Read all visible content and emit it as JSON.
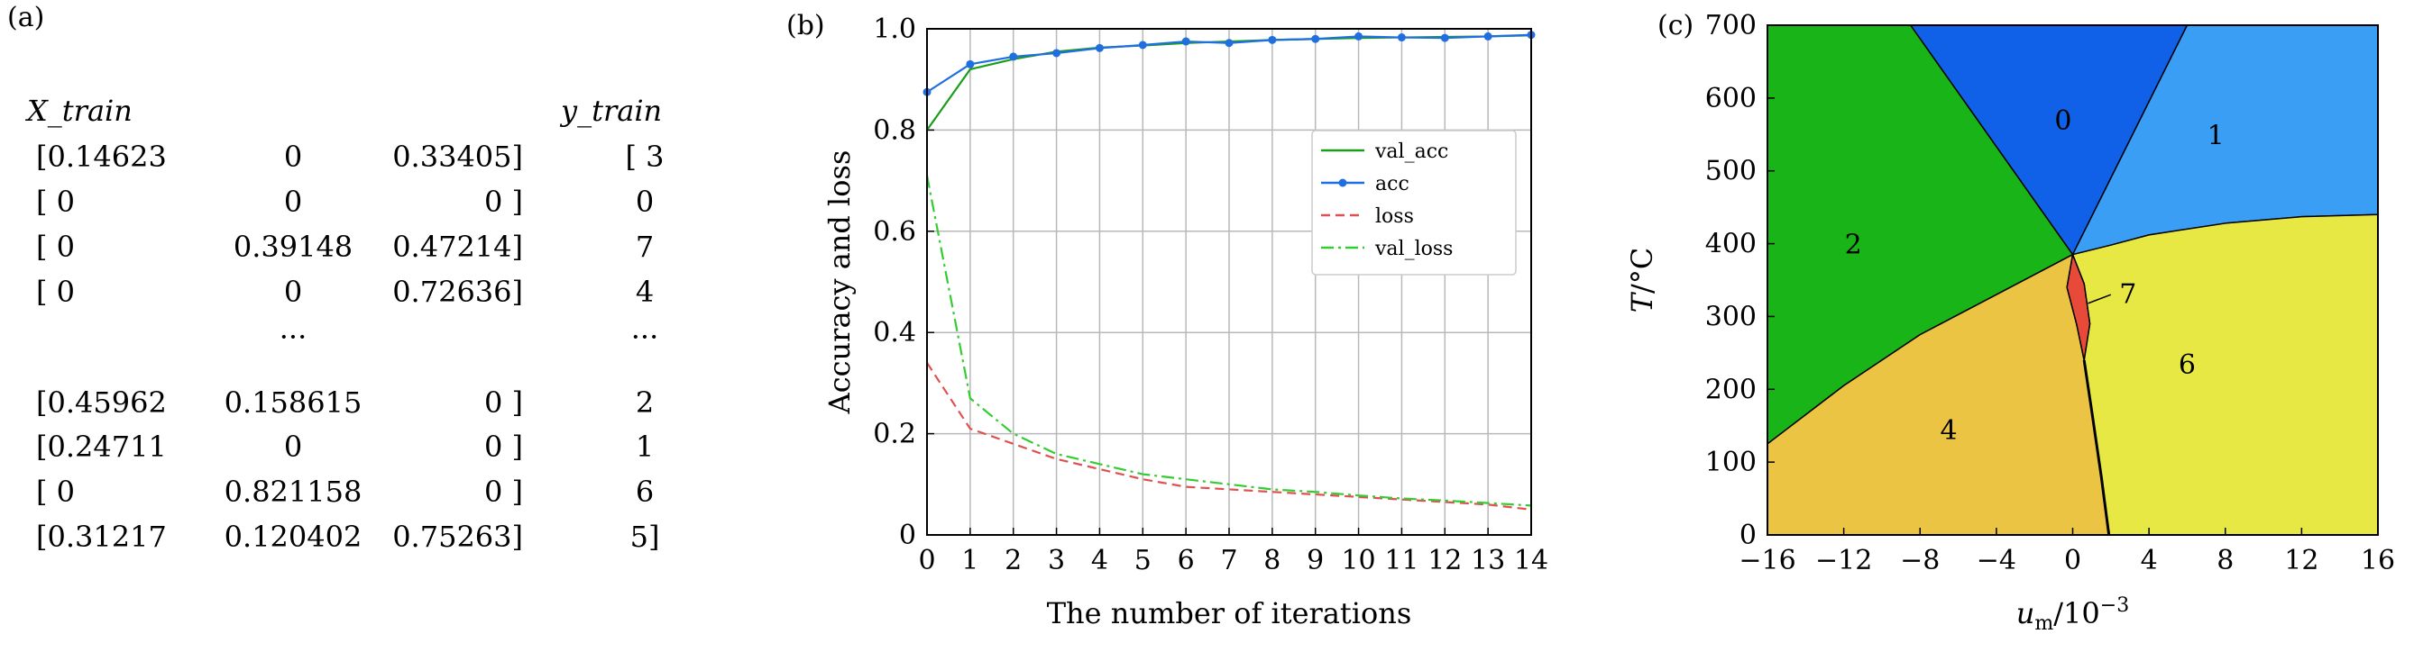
{
  "panel_a": {
    "label": "(a)",
    "x_header": "X_train",
    "y_header": "y_train",
    "rows": [
      {
        "c1": "[0.14623",
        "c2": "0",
        "c3": "0.33405]",
        "y": "[ 3"
      },
      {
        "c1": "[ 0",
        "c2": "0",
        "c3": "0 ]",
        "y": "0"
      },
      {
        "c1": "[ 0",
        "c2": "0.39148",
        "c3": "0.47214]",
        "y": "7"
      },
      {
        "c1": "[ 0",
        "c2": "0",
        "c3": "0.72636]",
        "y": "4"
      },
      {
        "c1": "",
        "c2": "···",
        "c3": "",
        "y": "···"
      },
      {
        "c1": "[0.45962",
        "c2": "0.158615",
        "c3": "0 ]",
        "y": "2"
      },
      {
        "c1": "[0.24711",
        "c2": "0",
        "c3": "0 ]",
        "y": "1"
      },
      {
        "c1": "[ 0",
        "c2": "0.821158",
        "c3": "0 ]",
        "y": "6"
      },
      {
        "c1": "[0.31217",
        "c2": "0.120402",
        "c3": "0.75263]",
        "y": "5]"
      }
    ]
  },
  "chart_data": [
    {
      "panel_label": "(b)",
      "type": "line",
      "xlabel": "The number of iterations",
      "ylabel": "Accuracy and loss",
      "xlim": [
        0,
        14
      ],
      "ylim": [
        0,
        1.0
      ],
      "xticks": [
        "0",
        "1",
        "2",
        "3",
        "4",
        "5",
        "6",
        "7",
        "8",
        "9",
        "10",
        "11",
        "12",
        "13",
        "14"
      ],
      "yticks": [
        "0",
        "0.2",
        "0.4",
        "0.6",
        "0.8",
        "1.0"
      ],
      "grid": true,
      "legend_position": "right, middle",
      "x": [
        0,
        1,
        2,
        3,
        4,
        5,
        6,
        7,
        8,
        9,
        10,
        11,
        12,
        13,
        14
      ],
      "series": [
        {
          "name": "val_acc",
          "color": "#1a9e1a",
          "style": "solid",
          "marker": false,
          "values": [
            0.8,
            0.92,
            0.94,
            0.955,
            0.963,
            0.967,
            0.972,
            0.975,
            0.978,
            0.98,
            0.982,
            0.983,
            0.984,
            0.985,
            0.987
          ]
        },
        {
          "name": "acc",
          "color": "#1f6fe0",
          "style": "solid",
          "marker": true,
          "values": [
            0.875,
            0.93,
            0.945,
            0.952,
            0.962,
            0.968,
            0.975,
            0.972,
            0.978,
            0.98,
            0.985,
            0.983,
            0.982,
            0.985,
            0.988
          ]
        },
        {
          "name": "loss",
          "color": "#e05050",
          "style": "dashed",
          "marker": false,
          "values": [
            0.34,
            0.21,
            0.18,
            0.15,
            0.13,
            0.11,
            0.095,
            0.09,
            0.085,
            0.08,
            0.075,
            0.07,
            0.065,
            0.06,
            0.05
          ]
        },
        {
          "name": "val_loss",
          "color": "#33cc33",
          "style": "dashdot",
          "marker": false,
          "values": [
            0.71,
            0.27,
            0.2,
            0.16,
            0.14,
            0.12,
            0.11,
            0.1,
            0.09,
            0.085,
            0.078,
            0.072,
            0.068,
            0.063,
            0.058
          ]
        }
      ]
    },
    {
      "panel_label": "(c)",
      "type": "area",
      "description_kind": "phase_regions",
      "xlabel": "u_m/10^-3",
      "ylabel": "T/°C",
      "xlabel_parts": {
        "var": "u",
        "sub": "m",
        "rest": "/10",
        "sup": "−3"
      },
      "ylabel_parts": {
        "var": "T",
        "rest": "/°C"
      },
      "xlim": [
        -16,
        16
      ],
      "ylim": [
        0,
        700
      ],
      "xticks": [
        "−16",
        "−12",
        "−8",
        "−4",
        "0",
        "4",
        "8",
        "12",
        "16"
      ],
      "yticks": [
        "0",
        "100",
        "200",
        "300",
        "400",
        "500",
        "600",
        "700"
      ],
      "regions": [
        {
          "label": "0",
          "color": "#1060e8",
          "label_pos": [
            -0.5,
            570
          ],
          "polygon": [
            [
              -8.5,
              700
            ],
            [
              6,
              700
            ],
            [
              0,
              385
            ]
          ]
        },
        {
          "label": "1",
          "color": "#3a9ef5",
          "label_pos": [
            7.5,
            550
          ],
          "polygon": [
            [
              6,
              700
            ],
            [
              16,
              700
            ],
            [
              16,
              440
            ],
            [
              12,
              437
            ],
            [
              8,
              428
            ],
            [
              4,
              412
            ],
            [
              2,
              398
            ],
            [
              0,
              385
            ]
          ]
        },
        {
          "label": "2",
          "color": "#18b418",
          "label_pos": [
            -11.5,
            400
          ],
          "polygon": [
            [
              -16,
              700
            ],
            [
              -8.5,
              700
            ],
            [
              0,
              385
            ],
            [
              -4,
              330
            ],
            [
              -8,
              275
            ],
            [
              -12,
              205
            ],
            [
              -16,
              125
            ]
          ]
        },
        {
          "label": "4",
          "color": "#ecc444",
          "label_pos": [
            -6.5,
            145
          ],
          "polygon": [
            [
              -16,
              125
            ],
            [
              -12,
              205
            ],
            [
              -8,
              275
            ],
            [
              -4,
              330
            ],
            [
              0,
              385
            ],
            [
              -0.3,
              340
            ],
            [
              0.2,
              290
            ],
            [
              0.6,
              240
            ],
            [
              1.0,
              170
            ],
            [
              1.5,
              80
            ],
            [
              1.9,
              0
            ],
            [
              -16,
              0
            ]
          ]
        },
        {
          "label": "6",
          "color": "#e8e844",
          "label_pos": [
            6,
            235
          ],
          "polygon": [
            [
              0,
              385
            ],
            [
              2,
              398
            ],
            [
              4,
              412
            ],
            [
              8,
              428
            ],
            [
              12,
              437
            ],
            [
              16,
              440
            ],
            [
              16,
              0
            ],
            [
              1.9,
              0
            ],
            [
              1.5,
              80
            ],
            [
              1.0,
              170
            ],
            [
              0.6,
              240
            ],
            [
              0.9,
              290
            ],
            [
              0.6,
              345
            ]
          ]
        },
        {
          "label": "7",
          "color": "#e84a3a",
          "label_pos": [
            2.9,
            332
          ],
          "polygon": [
            [
              0,
              385
            ],
            [
              0.6,
              345
            ],
            [
              0.9,
              290
            ],
            [
              0.6,
              240
            ],
            [
              0.2,
              290
            ],
            [
              -0.3,
              340
            ]
          ]
        }
      ]
    }
  ]
}
